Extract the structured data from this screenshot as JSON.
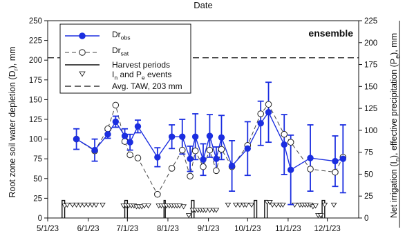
{
  "chart_data": {
    "type": "scatter",
    "top_label": "Date",
    "panel_label": "ensemble",
    "ylabel_left": "Root zone soil water depletion (D_r), mm",
    "ylabel_right": "Net irrigation (I_n), effective precipitation (P_e), mm",
    "x_ticks": [
      "5/1/23",
      "6/1/23",
      "7/1/23",
      "8/1/23",
      "9/1/23",
      "10/1/23",
      "11/1/23",
      "12/1/23"
    ],
    "x_tick_days": [
      0,
      31,
      61,
      92,
      123,
      153,
      184,
      214
    ],
    "xlim_days": [
      0,
      238
    ],
    "ylim_left": [
      0,
      250
    ],
    "y_ticks_left": [
      0,
      25,
      50,
      75,
      100,
      125,
      150,
      175,
      200,
      225,
      250
    ],
    "ylim_right": [
      0,
      225
    ],
    "y_ticks_right": [
      0,
      25,
      50,
      75,
      100,
      125,
      150,
      175,
      200,
      225
    ],
    "legend": {
      "position": "top-left",
      "entries": [
        {
          "key": "dr_obs",
          "main": "Dr",
          "sub": "obs"
        },
        {
          "key": "dr_sat",
          "main": "Dr",
          "sub": "sat"
        },
        {
          "key": "harvest",
          "text": "Harvest periods"
        },
        {
          "key": "events",
          "main": "I",
          "sub": "n",
          "rest": " and P",
          "sub2": "e",
          "rest2": " events"
        },
        {
          "key": "taw",
          "text": "Avg. TAW, 203 mm"
        }
      ]
    },
    "taw_mm": 203,
    "series": [
      {
        "name": "Dr obs",
        "color": "#1b2ee0",
        "x_days": [
          22,
          36,
          46,
          52,
          59,
          63,
          69,
          84,
          95,
          103,
          109,
          113,
          119,
          124,
          129,
          133,
          141,
          153,
          163,
          169,
          181,
          186,
          201,
          220,
          226
        ],
        "y": [
          100,
          86,
          106,
          122,
          104,
          96,
          116,
          77,
          103,
          103,
          75,
          103,
          74,
          104,
          75,
          102,
          66,
          88,
          120,
          134,
          93,
          61,
          76,
          72,
          75
        ],
        "err": [
          13,
          14,
          5,
          7,
          9,
          10,
          8,
          12,
          15,
          22,
          16,
          29,
          20,
          27,
          15,
          28,
          32,
          34,
          28,
          38,
          38,
          44,
          42,
          32,
          43
        ]
      },
      {
        "name": "Dr sat",
        "x_days": [
          22,
          36,
          46,
          52,
          59,
          63,
          69,
          84,
          95,
          103,
          109,
          113,
          119,
          124,
          129,
          133,
          141,
          153,
          163,
          169,
          181,
          186,
          201,
          220,
          226
        ],
        "y": [
          100,
          85,
          113,
          143,
          97,
          80,
          76,
          30,
          63,
          86,
          53,
          85,
          65,
          86,
          60,
          87,
          65,
          92,
          132,
          144,
          106,
          96,
          62,
          58,
          77
        ]
      }
    ],
    "harvest_periods": [
      [
        11,
        13
      ],
      [
        59,
        61
      ],
      [
        89,
        90
      ],
      [
        110,
        112
      ],
      [
        158,
        160
      ],
      [
        166,
        168
      ],
      [
        210,
        212
      ]
    ],
    "events": {
      "x_days": [
        13,
        15,
        19,
        22,
        25,
        28,
        31,
        34,
        37,
        42,
        58,
        60,
        62,
        64,
        66,
        68,
        70,
        72,
        74,
        77,
        85,
        87,
        89,
        91,
        93,
        95,
        97,
        99,
        101,
        104,
        108,
        111,
        113,
        115,
        117,
        119,
        121,
        124,
        127,
        129,
        138,
        144,
        147,
        150,
        152,
        156,
        168,
        170,
        172,
        175,
        178,
        180,
        189,
        193,
        195,
        197,
        199,
        201,
        203,
        205,
        207,
        209,
        212,
        219
      ],
      "y": [
        14,
        15,
        15,
        15,
        15,
        15,
        15,
        15,
        15,
        15,
        14,
        14,
        14,
        14,
        14,
        13,
        13,
        13,
        14,
        14,
        14,
        14,
        14,
        14,
        14,
        14,
        14,
        14,
        14,
        13,
        3,
        9,
        9,
        9,
        9,
        9,
        9,
        9,
        9,
        9,
        15,
        15,
        15,
        15,
        15,
        15,
        18,
        18,
        15,
        15,
        15,
        15,
        15,
        15,
        15,
        15,
        15,
        15,
        13,
        14,
        3,
        3,
        15,
        15
      ]
    }
  }
}
